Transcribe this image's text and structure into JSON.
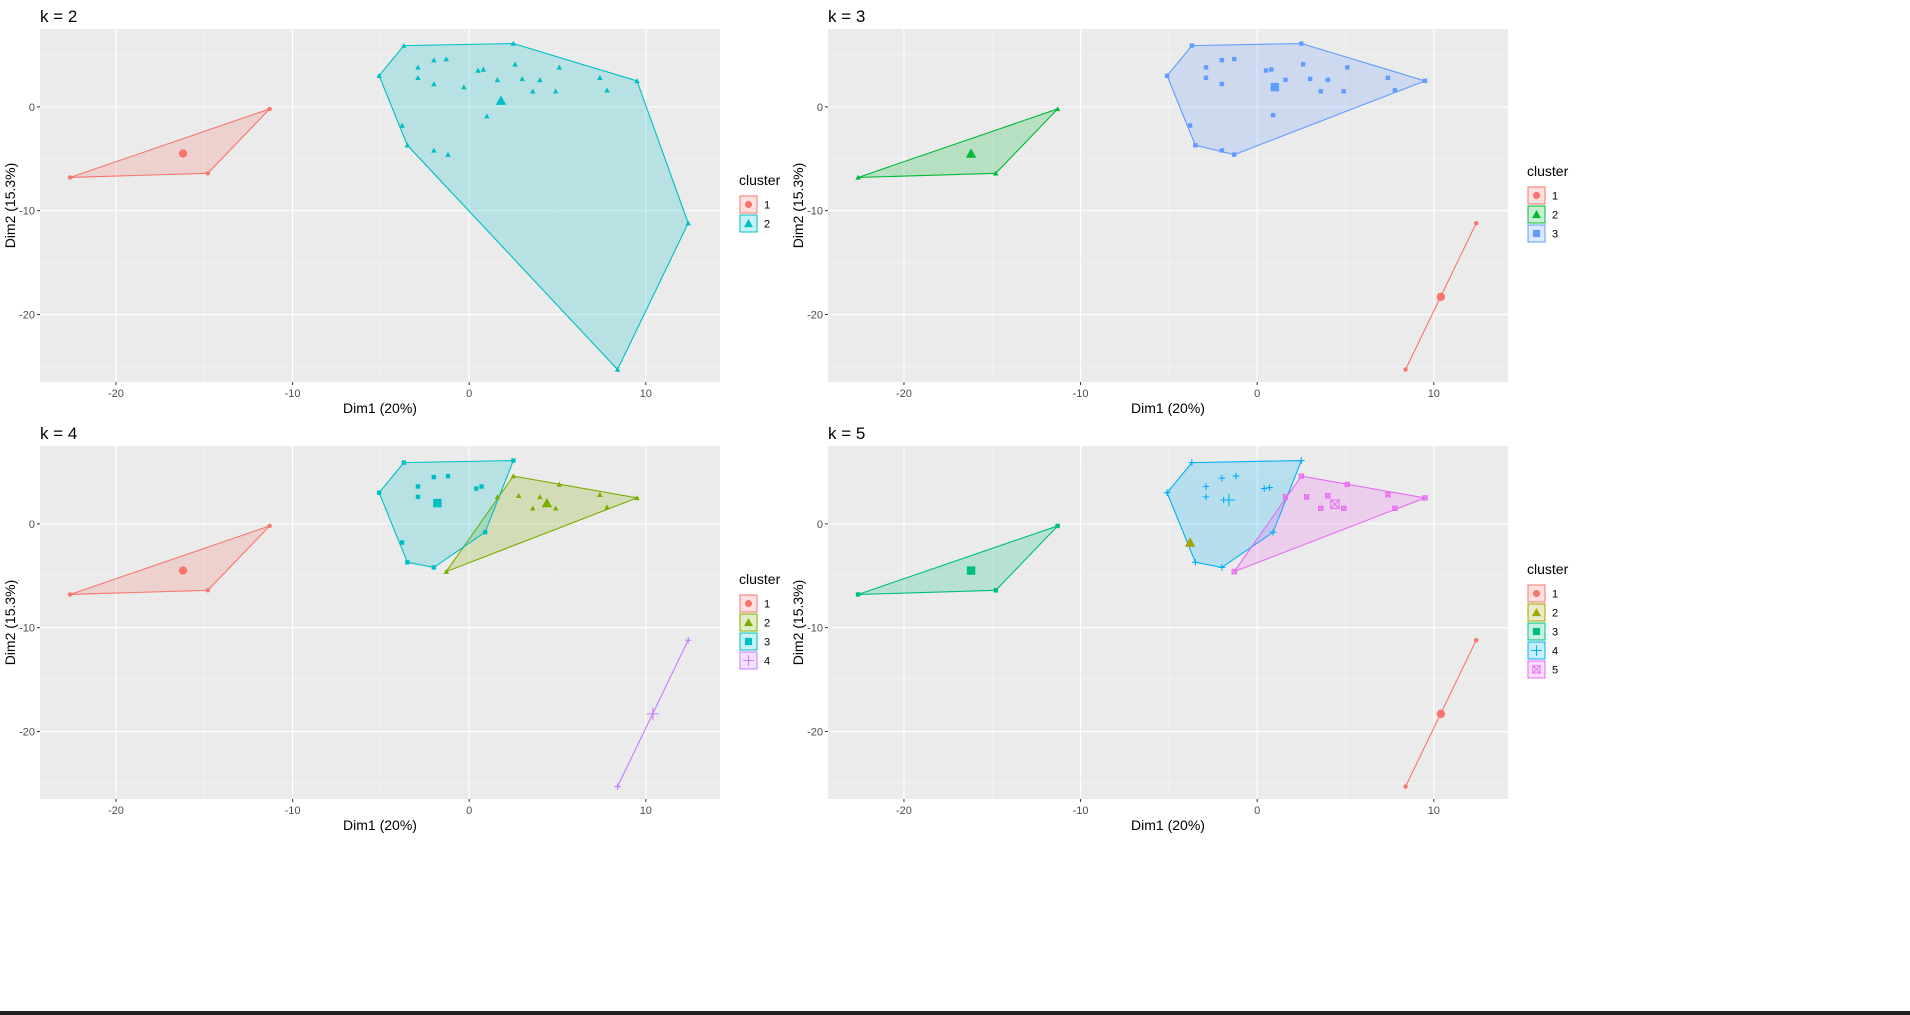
{
  "legend_title": "cluster",
  "colors": {
    "k2": [
      "#F8766D",
      "#00BFC4"
    ],
    "k3": [
      "#F8766D",
      "#00BA38",
      "#619CFF"
    ],
    "k4": [
      "#F8766D",
      "#7CAE00",
      "#00BFC4",
      "#C77CFF"
    ],
    "k5": [
      "#F8766D",
      "#A3A500",
      "#00BF7D",
      "#00B0F6",
      "#E76BF3"
    ]
  },
  "chart_data": [
    {
      "type": "scatter",
      "title": "k = 2",
      "xlabel": "Dim1 (20%)",
      "ylabel": "Dim2 (15.3%)",
      "xlim": [
        -24.3,
        14.2
      ],
      "ylim": [
        -26.5,
        7.5
      ],
      "xticks": [
        -20,
        -10,
        0,
        10
      ],
      "yticks": [
        -20,
        -10,
        0
      ],
      "grid": true,
      "legend_position": "right",
      "legend": [
        "1",
        "2"
      ],
      "clusters": [
        {
          "name": "1",
          "color": "#F8766D",
          "shape": "circle",
          "centroid": [
            -16.2,
            -4.5
          ],
          "points": [
            [
              -22.6,
              -6.8
            ],
            [
              -14.8,
              -6.4
            ],
            [
              -11.3,
              -0.2
            ]
          ],
          "hull": [
            [
              -22.6,
              -6.8
            ],
            [
              -14.8,
              -6.4
            ],
            [
              -11.3,
              -0.2
            ]
          ]
        },
        {
          "name": "2",
          "color": "#00BFC4",
          "shape": "triangle",
          "centroid": [
            1.8,
            0.6
          ],
          "points": [
            [
              -5.1,
              3.0
            ],
            [
              -3.7,
              5.9
            ],
            [
              2.5,
              6.1
            ],
            [
              9.5,
              2.5
            ],
            [
              12.4,
              -11.2
            ],
            [
              8.4,
              -25.3
            ],
            [
              -3.5,
              -3.7
            ],
            [
              -3.8,
              -1.8
            ],
            [
              -2.9,
              3.8
            ],
            [
              -2.9,
              2.8
            ],
            [
              -2.0,
              4.5
            ],
            [
              -1.3,
              4.6
            ],
            [
              -2.0,
              2.2
            ],
            [
              -2.0,
              -4.2
            ],
            [
              -1.2,
              -4.6
            ],
            [
              0.5,
              3.5
            ],
            [
              0.8,
              3.6
            ],
            [
              1.6,
              2.6
            ],
            [
              2.6,
              4.1
            ],
            [
              3.0,
              2.7
            ],
            [
              4.0,
              2.6
            ],
            [
              5.1,
              3.8
            ],
            [
              3.6,
              1.5
            ],
            [
              4.9,
              1.5
            ],
            [
              7.4,
              2.8
            ],
            [
              7.8,
              1.6
            ],
            [
              1.0,
              -0.9
            ],
            [
              -0.3,
              1.9
            ]
          ],
          "hull": [
            [
              -5.1,
              3.0
            ],
            [
              -3.7,
              5.9
            ],
            [
              2.5,
              6.1
            ],
            [
              9.5,
              2.5
            ],
            [
              12.4,
              -11.2
            ],
            [
              8.4,
              -25.3
            ],
            [
              -3.5,
              -3.7
            ]
          ]
        }
      ]
    },
    {
      "type": "scatter",
      "title": "k = 3",
      "xlabel": "Dim1 (20%)",
      "ylabel": "Dim2 (15.3%)",
      "xlim": [
        -24.3,
        14.2
      ],
      "ylim": [
        -26.5,
        7.5
      ],
      "xticks": [
        -20,
        -10,
        0,
        10
      ],
      "yticks": [
        -20,
        -10,
        0
      ],
      "grid": true,
      "legend_position": "right",
      "legend": [
        "1",
        "2",
        "3"
      ],
      "clusters": [
        {
          "name": "1",
          "color": "#F8766D",
          "shape": "circle",
          "centroid": [
            10.4,
            -18.3
          ],
          "points": [
            [
              8.4,
              -25.3
            ],
            [
              12.4,
              -11.2
            ]
          ],
          "hull": [
            [
              8.4,
              -25.3
            ],
            [
              12.4,
              -11.2
            ]
          ]
        },
        {
          "name": "2",
          "color": "#00BA38",
          "shape": "triangle",
          "centroid": [
            -16.2,
            -4.5
          ],
          "points": [
            [
              -22.6,
              -6.8
            ],
            [
              -14.8,
              -6.4
            ],
            [
              -11.3,
              -0.2
            ]
          ],
          "hull": [
            [
              -22.6,
              -6.8
            ],
            [
              -14.8,
              -6.4
            ],
            [
              -11.3,
              -0.2
            ]
          ]
        },
        {
          "name": "3",
          "color": "#619CFF",
          "shape": "square",
          "centroid": [
            1.0,
            1.9
          ],
          "points": [
            [
              -5.1,
              3.0
            ],
            [
              -3.7,
              5.9
            ],
            [
              2.5,
              6.1
            ],
            [
              9.5,
              2.5
            ],
            [
              -1.3,
              -4.6
            ],
            [
              -3.5,
              -3.7
            ],
            [
              -3.8,
              -1.8
            ],
            [
              -2.9,
              3.8
            ],
            [
              -2.9,
              2.8
            ],
            [
              -2.0,
              4.5
            ],
            [
              -1.3,
              4.6
            ],
            [
              -2.0,
              2.2
            ],
            [
              -2.0,
              -4.2
            ],
            [
              0.5,
              3.5
            ],
            [
              0.8,
              3.6
            ],
            [
              1.6,
              2.6
            ],
            [
              2.6,
              4.1
            ],
            [
              3.0,
              2.7
            ],
            [
              4.0,
              2.6
            ],
            [
              5.1,
              3.8
            ],
            [
              3.6,
              1.5
            ],
            [
              4.9,
              1.5
            ],
            [
              7.4,
              2.8
            ],
            [
              7.8,
              1.6
            ],
            [
              0.9,
              -0.8
            ]
          ],
          "hull": [
            [
              -5.1,
              3.0
            ],
            [
              -3.7,
              5.9
            ],
            [
              2.5,
              6.1
            ],
            [
              9.5,
              2.5
            ],
            [
              -1.3,
              -4.6
            ],
            [
              -3.5,
              -3.7
            ]
          ]
        }
      ]
    },
    {
      "type": "scatter",
      "title": "k = 4",
      "xlabel": "Dim1 (20%)",
      "ylabel": "Dim2 (15.3%)",
      "xlim": [
        -24.3,
        14.2
      ],
      "ylim": [
        -26.5,
        7.5
      ],
      "xticks": [
        -20,
        -10,
        0,
        10
      ],
      "yticks": [
        -20,
        -10,
        0
      ],
      "grid": true,
      "legend_position": "right",
      "legend": [
        "1",
        "2",
        "3",
        "4"
      ],
      "clusters": [
        {
          "name": "1",
          "color": "#F8766D",
          "shape": "circle",
          "centroid": [
            -16.2,
            -4.5
          ],
          "points": [
            [
              -22.6,
              -6.8
            ],
            [
              -14.8,
              -6.4
            ],
            [
              -11.3,
              -0.2
            ]
          ],
          "hull": [
            [
              -22.6,
              -6.8
            ],
            [
              -14.8,
              -6.4
            ],
            [
              -11.3,
              -0.2
            ]
          ]
        },
        {
          "name": "2",
          "color": "#7CAE00",
          "shape": "triangle",
          "centroid": [
            4.4,
            2.0
          ],
          "points": [
            [
              -1.3,
              -4.6
            ],
            [
              2.5,
              4.6
            ],
            [
              9.5,
              2.5
            ],
            [
              1.6,
              2.6
            ],
            [
              2.8,
              2.7
            ],
            [
              4.0,
              2.6
            ],
            [
              5.1,
              3.8
            ],
            [
              3.6,
              1.5
            ],
            [
              4.9,
              1.5
            ],
            [
              7.4,
              2.8
            ],
            [
              7.8,
              1.6
            ]
          ],
          "hull": [
            [
              -1.3,
              -4.6
            ],
            [
              2.5,
              4.6
            ],
            [
              9.5,
              2.5
            ]
          ]
        },
        {
          "name": "3",
          "color": "#00BFC4",
          "shape": "square",
          "centroid": [
            -1.8,
            2.0
          ],
          "points": [
            [
              -5.1,
              3.0
            ],
            [
              -3.7,
              5.9
            ],
            [
              2.5,
              6.1
            ],
            [
              0.9,
              -0.8
            ],
            [
              -2.0,
              -4.2
            ],
            [
              -3.5,
              -3.7
            ],
            [
              -3.8,
              -1.8
            ],
            [
              -2.9,
              3.6
            ],
            [
              -2.9,
              2.6
            ],
            [
              -2.0,
              4.5
            ],
            [
              -1.2,
              4.6
            ],
            [
              0.4,
              3.4
            ],
            [
              0.7,
              3.6
            ]
          ],
          "hull": [
            [
              -5.1,
              3.0
            ],
            [
              -3.7,
              5.9
            ],
            [
              2.5,
              6.1
            ],
            [
              0.9,
              -0.8
            ],
            [
              -2.0,
              -4.2
            ],
            [
              -3.5,
              -3.7
            ]
          ]
        },
        {
          "name": "4",
          "color": "#C77CFF",
          "shape": "plus",
          "centroid": [
            10.4,
            -18.3
          ],
          "points": [
            [
              8.4,
              -25.3
            ],
            [
              12.4,
              -11.2
            ]
          ],
          "hull": [
            [
              8.4,
              -25.3
            ],
            [
              12.4,
              -11.2
            ]
          ]
        }
      ]
    },
    {
      "type": "scatter",
      "title": "k = 5",
      "xlabel": "Dim1 (20%)",
      "ylabel": "Dim2 (15.3%)",
      "xlim": [
        -24.3,
        14.2
      ],
      "ylim": [
        -26.5,
        7.5
      ],
      "xticks": [
        -20,
        -10,
        0,
        10
      ],
      "yticks": [
        -20,
        -10,
        0
      ],
      "grid": true,
      "legend_position": "right",
      "legend": [
        "1",
        "2",
        "3",
        "4",
        "5"
      ],
      "clusters": [
        {
          "name": "1",
          "color": "#F8766D",
          "shape": "circle",
          "centroid": [
            10.4,
            -18.3
          ],
          "points": [
            [
              8.4,
              -25.3
            ],
            [
              12.4,
              -11.2
            ]
          ],
          "hull": [
            [
              8.4,
              -25.3
            ],
            [
              12.4,
              -11.2
            ]
          ]
        },
        {
          "name": "2",
          "color": "#A3A500",
          "shape": "triangle",
          "centroid": [
            -3.8,
            -1.8
          ],
          "points": [],
          "hull": []
        },
        {
          "name": "3",
          "color": "#00BF7D",
          "shape": "square",
          "centroid": [
            -16.2,
            -4.5
          ],
          "points": [
            [
              -22.6,
              -6.8
            ],
            [
              -14.8,
              -6.4
            ],
            [
              -11.3,
              -0.2
            ]
          ],
          "hull": [
            [
              -22.6,
              -6.8
            ],
            [
              -14.8,
              -6.4
            ],
            [
              -11.3,
              -0.2
            ]
          ]
        },
        {
          "name": "4",
          "color": "#00B0F6",
          "shape": "plus",
          "centroid": [
            -1.6,
            2.3
          ],
          "points": [
            [
              -5.1,
              3.0
            ],
            [
              -3.7,
              5.9
            ],
            [
              2.5,
              6.1
            ],
            [
              0.9,
              -0.8
            ],
            [
              -2.0,
              -4.2
            ],
            [
              -3.5,
              -3.7
            ],
            [
              -2.9,
              3.6
            ],
            [
              -2.9,
              2.6
            ],
            [
              -2.0,
              4.4
            ],
            [
              -1.2,
              4.6
            ],
            [
              0.4,
              3.4
            ],
            [
              0.7,
              3.5
            ],
            [
              -1.9,
              2.3
            ]
          ],
          "hull": [
            [
              -5.1,
              3.0
            ],
            [
              -3.7,
              5.9
            ],
            [
              2.5,
              6.1
            ],
            [
              0.9,
              -0.8
            ],
            [
              -2.0,
              -4.2
            ],
            [
              -3.5,
              -3.7
            ]
          ]
        },
        {
          "name": "5",
          "color": "#E76BF3",
          "shape": "square-cross",
          "centroid": [
            4.4,
            1.9
          ],
          "points": [
            [
              -1.3,
              -4.6
            ],
            [
              2.5,
              4.6
            ],
            [
              9.5,
              2.5
            ],
            [
              1.6,
              2.6
            ],
            [
              2.8,
              2.6
            ],
            [
              4.0,
              2.7
            ],
            [
              5.1,
              3.8
            ],
            [
              3.6,
              1.5
            ],
            [
              4.9,
              1.5
            ],
            [
              7.4,
              2.8
            ],
            [
              7.8,
              1.5
            ]
          ],
          "hull": [
            [
              -1.3,
              -4.6
            ],
            [
              2.5,
              4.6
            ],
            [
              9.5,
              2.5
            ]
          ]
        }
      ]
    }
  ]
}
